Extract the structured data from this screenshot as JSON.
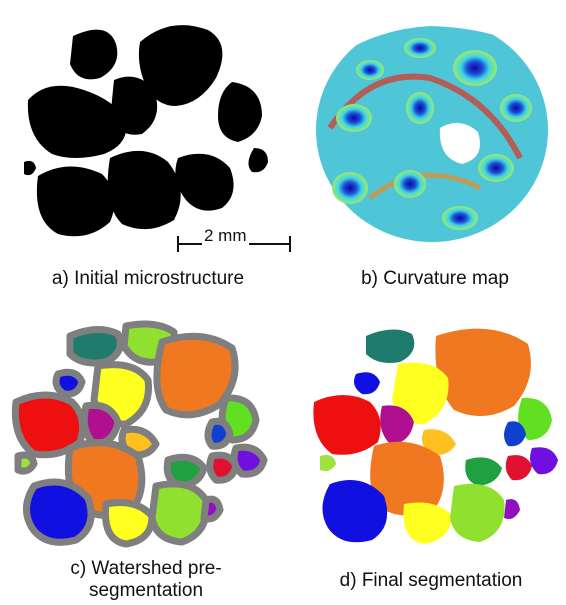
{
  "panels": [
    {
      "id": "a",
      "caption": "a) Initial microstructure"
    },
    {
      "id": "b",
      "caption": "b) Curvature map"
    },
    {
      "id": "c",
      "caption_line1": "c) Watershed pre-",
      "caption_line2": "segmentation"
    },
    {
      "id": "d",
      "caption": "d) Final segmentation"
    }
  ],
  "scale_bar": {
    "label": "2 mm"
  },
  "colors": {
    "grain": "#000000",
    "boundary": "#7f7f7f",
    "curv_low": "#1010c8",
    "curv_mid": "#3fd7e6",
    "curv_high": "#e02020"
  }
}
